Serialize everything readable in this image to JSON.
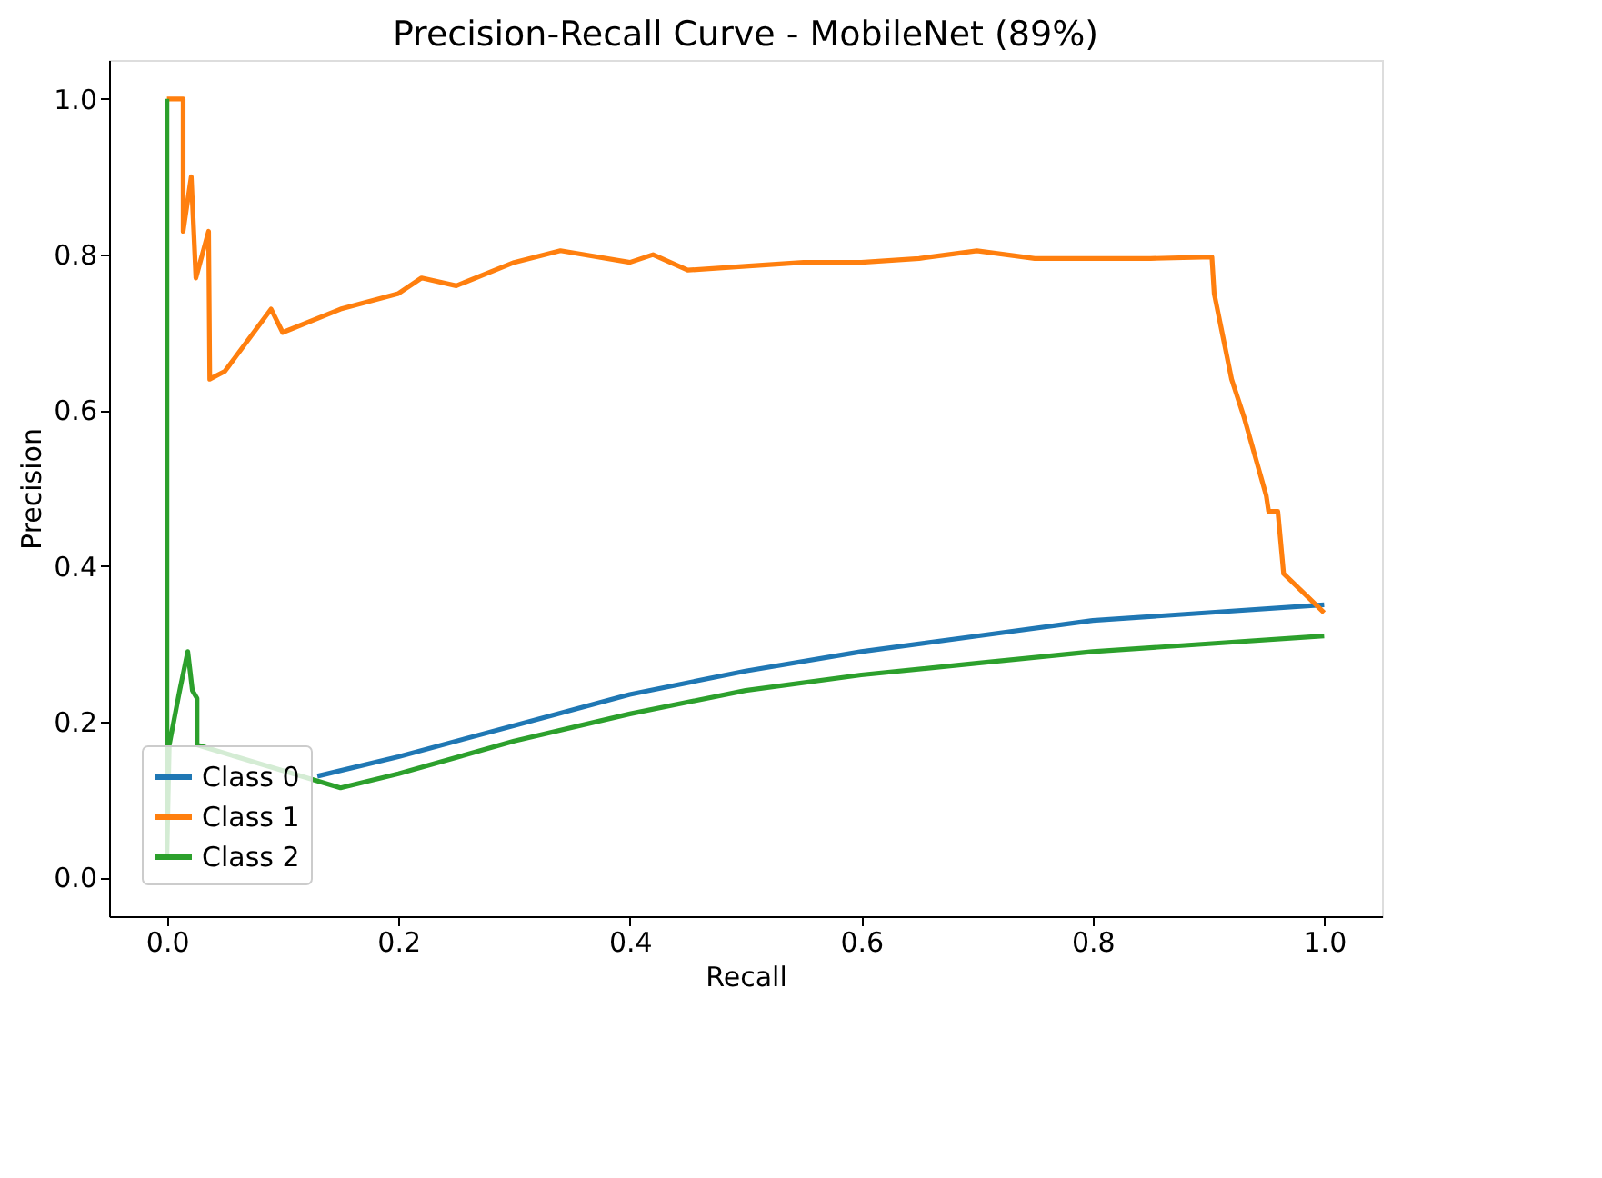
{
  "chart_data": {
    "type": "line",
    "title": "Precision-Recall Curve - MobileNet (89%)",
    "xlabel": "Recall",
    "ylabel": "Precision",
    "xlim": [
      -0.05,
      1.05
    ],
    "ylim": [
      -0.05,
      1.05
    ],
    "xticks": [
      {
        "value": 0,
        "label": "0.0"
      },
      {
        "value": 0.2,
        "label": "0.2"
      },
      {
        "value": 0.4,
        "label": "0.4"
      },
      {
        "value": 0.6,
        "label": "0.6"
      },
      {
        "value": 0.8,
        "label": "0.8"
      },
      {
        "value": 1,
        "label": "1.0"
      }
    ],
    "yticks": [
      {
        "value": 0,
        "label": "0.0"
      },
      {
        "value": 0.2,
        "label": "0.2"
      },
      {
        "value": 0.4,
        "label": "0.4"
      },
      {
        "value": 0.6,
        "label": "0.6"
      },
      {
        "value": 0.8,
        "label": "0.8"
      },
      {
        "value": 1,
        "label": "1.0"
      }
    ],
    "grid": false,
    "legend": "bottom left",
    "line_style": "solid",
    "marker": "none",
    "series": [
      {
        "name": "Class 0",
        "color": "#1f77b4",
        "x": [
          0.13,
          0.2,
          0.3,
          0.4,
          0.5,
          0.6,
          0.7,
          0.8,
          0.9,
          1.0
        ],
        "values": [
          0.13,
          0.155,
          0.195,
          0.235,
          0.265,
          0.29,
          0.31,
          0.33,
          0.34,
          0.35
        ]
      },
      {
        "name": "Class 1",
        "color": "#ff7f0e",
        "x": [
          0.0,
          0.014,
          0.014,
          0.021,
          0.025,
          0.036,
          0.037,
          0.05,
          0.07,
          0.09,
          0.1,
          0.15,
          0.2,
          0.22,
          0.25,
          0.3,
          0.34,
          0.4,
          0.42,
          0.45,
          0.5,
          0.55,
          0.6,
          0.65,
          0.7,
          0.75,
          0.8,
          0.85,
          0.903,
          0.905,
          0.92,
          0.931,
          0.95,
          0.952,
          0.96,
          0.965,
          0.986,
          1.0
        ],
        "values": [
          1.0,
          1.0,
          0.83,
          0.9,
          0.77,
          0.83,
          0.64,
          0.65,
          0.69,
          0.73,
          0.7,
          0.73,
          0.75,
          0.77,
          0.76,
          0.79,
          0.805,
          0.79,
          0.8,
          0.78,
          0.785,
          0.79,
          0.79,
          0.795,
          0.805,
          0.795,
          0.795,
          0.795,
          0.797,
          0.75,
          0.64,
          0.59,
          0.49,
          0.47,
          0.47,
          0.39,
          0.36,
          0.34
        ]
      },
      {
        "name": "Class 2",
        "color": "#2ca02c",
        "x": [
          0.0,
          0.0,
          0.002,
          0.011,
          0.018,
          0.022,
          0.026,
          0.026,
          0.15,
          0.2,
          0.3,
          0.4,
          0.5,
          0.6,
          0.7,
          0.8,
          0.9,
          1.0
        ],
        "values": [
          1.0,
          0.03,
          0.17,
          0.24,
          0.29,
          0.24,
          0.23,
          0.17,
          0.115,
          0.133,
          0.175,
          0.21,
          0.24,
          0.26,
          0.275,
          0.29,
          0.3,
          0.31
        ]
      }
    ]
  }
}
